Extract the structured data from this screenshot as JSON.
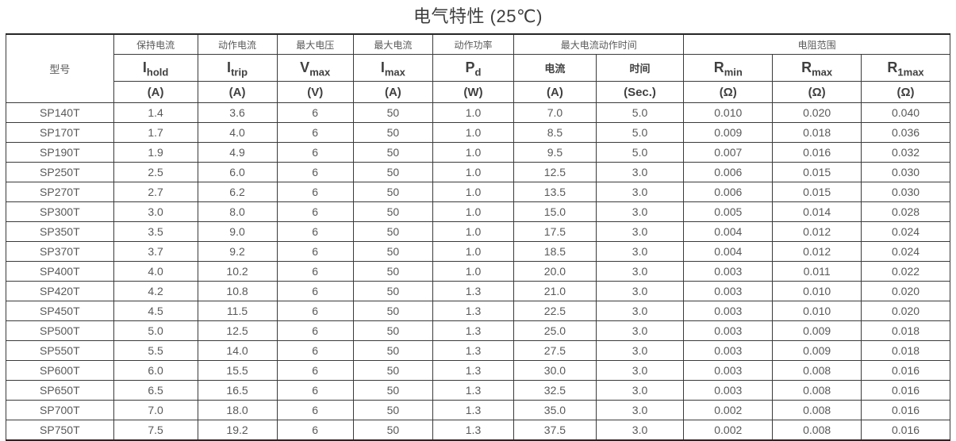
{
  "title": "电气特性 (25℃)",
  "colors": {
    "border": "#3a3a3a",
    "outer_border": "#262626",
    "data_text": "#595959",
    "header_text": "#404040",
    "title_text": "#3d3d3d",
    "background": "#ffffff"
  },
  "table": {
    "groups": [
      {
        "label": "型号"
      },
      {
        "label": "保持电流"
      },
      {
        "label": "动作电流"
      },
      {
        "label": "最大电压"
      },
      {
        "label": "最大电流"
      },
      {
        "label": "动作功率"
      },
      {
        "label": "最大电流动作时间"
      },
      {
        "label": "电阻范围"
      }
    ],
    "symbols": [
      {
        "base": "I",
        "sub": "hold"
      },
      {
        "base": "I",
        "sub": "trip"
      },
      {
        "base": "V",
        "sub": "max"
      },
      {
        "base": "I",
        "sub": "max"
      },
      {
        "base": "P",
        "sub": "d"
      },
      {
        "base": "电流",
        "sub": ""
      },
      {
        "base": "时间",
        "sub": ""
      },
      {
        "base": "R",
        "sub": "min"
      },
      {
        "base": "R",
        "sub": "max"
      },
      {
        "base": "R",
        "sub": "1max"
      }
    ],
    "units": [
      "(A)",
      "(A)",
      "(V)",
      "(A)",
      "(W)",
      "(A)",
      "(Sec.)",
      "(Ω)",
      "(Ω)",
      "(Ω)"
    ],
    "rows": [
      [
        "SP140T",
        "1.4",
        "3.6",
        "6",
        "50",
        "1.0",
        "7.0",
        "5.0",
        "0.010",
        "0.020",
        "0.040"
      ],
      [
        "SP170T",
        "1.7",
        "4.0",
        "6",
        "50",
        "1.0",
        "8.5",
        "5.0",
        "0.009",
        "0.018",
        "0.036"
      ],
      [
        "SP190T",
        "1.9",
        "4.9",
        "6",
        "50",
        "1.0",
        "9.5",
        "5.0",
        "0.007",
        "0.016",
        "0.032"
      ],
      [
        "SP250T",
        "2.5",
        "6.0",
        "6",
        "50",
        "1.0",
        "12.5",
        "3.0",
        "0.006",
        "0.015",
        "0.030"
      ],
      [
        "SP270T",
        "2.7",
        "6.2",
        "6",
        "50",
        "1.0",
        "13.5",
        "3.0",
        "0.006",
        "0.015",
        "0.030"
      ],
      [
        "SP300T",
        "3.0",
        "8.0",
        "6",
        "50",
        "1.0",
        "15.0",
        "3.0",
        "0.005",
        "0.014",
        "0.028"
      ],
      [
        "SP350T",
        "3.5",
        "9.0",
        "6",
        "50",
        "1.0",
        "17.5",
        "3.0",
        "0.004",
        "0.012",
        "0.024"
      ],
      [
        "SP370T",
        "3.7",
        "9.2",
        "6",
        "50",
        "1.0",
        "18.5",
        "3.0",
        "0.004",
        "0.012",
        "0.024"
      ],
      [
        "SP400T",
        "4.0",
        "10.2",
        "6",
        "50",
        "1.0",
        "20.0",
        "3.0",
        "0.003",
        "0.011",
        "0.022"
      ],
      [
        "SP420T",
        "4.2",
        "10.8",
        "6",
        "50",
        "1.3",
        "21.0",
        "3.0",
        "0.003",
        "0.010",
        "0.020"
      ],
      [
        "SP450T",
        "4.5",
        "11.5",
        "6",
        "50",
        "1.3",
        "22.5",
        "3.0",
        "0.003",
        "0.010",
        "0.020"
      ],
      [
        "SP500T",
        "5.0",
        "12.5",
        "6",
        "50",
        "1.3",
        "25.0",
        "3.0",
        "0.003",
        "0.009",
        "0.018"
      ],
      [
        "SP550T",
        "5.5",
        "14.0",
        "6",
        "50",
        "1.3",
        "27.5",
        "3.0",
        "0.003",
        "0.009",
        "0.018"
      ],
      [
        "SP600T",
        "6.0",
        "15.5",
        "6",
        "50",
        "1.3",
        "30.0",
        "3.0",
        "0.003",
        "0.008",
        "0.016"
      ],
      [
        "SP650T",
        "6.5",
        "16.5",
        "6",
        "50",
        "1.3",
        "32.5",
        "3.0",
        "0.003",
        "0.008",
        "0.016"
      ],
      [
        "SP700T",
        "7.0",
        "18.0",
        "6",
        "50",
        "1.3",
        "35.0",
        "3.0",
        "0.002",
        "0.008",
        "0.016"
      ],
      [
        "SP750T",
        "7.5",
        "19.2",
        "6",
        "50",
        "1.3",
        "37.5",
        "3.0",
        "0.002",
        "0.008",
        "0.016"
      ]
    ]
  }
}
